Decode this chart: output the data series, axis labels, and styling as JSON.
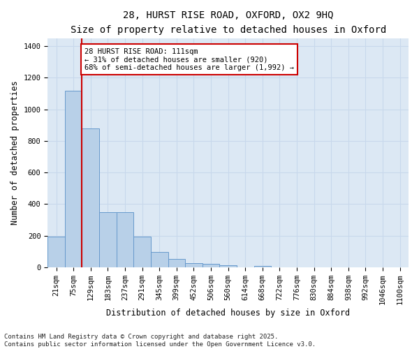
{
  "title_line1": "28, HURST RISE ROAD, OXFORD, OX2 9HQ",
  "title_line2": "Size of property relative to detached houses in Oxford",
  "xlabel": "Distribution of detached houses by size in Oxford",
  "ylabel": "Number of detached properties",
  "categories": [
    "21sqm",
    "75sqm",
    "129sqm",
    "183sqm",
    "237sqm",
    "291sqm",
    "345sqm",
    "399sqm",
    "452sqm",
    "506sqm",
    "560sqm",
    "614sqm",
    "668sqm",
    "722sqm",
    "776sqm",
    "830sqm",
    "884sqm",
    "938sqm",
    "992sqm",
    "1046sqm",
    "1100sqm"
  ],
  "values": [
    195,
    1120,
    880,
    350,
    350,
    195,
    95,
    55,
    25,
    20,
    15,
    0,
    10,
    0,
    0,
    0,
    0,
    0,
    0,
    0,
    0
  ],
  "bar_color": "#b8d0e8",
  "bar_edge_color": "#6699cc",
  "grid_color": "#c8d8ec",
  "background_color": "#dce8f4",
  "vline_color": "#cc0000",
  "annotation_text": "28 HURST RISE ROAD: 111sqm\n← 31% of detached houses are smaller (920)\n68% of semi-detached houses are larger (1,992) →",
  "annotation_box_color": "#cc0000",
  "ylim": [
    0,
    1450
  ],
  "yticks": [
    0,
    200,
    400,
    600,
    800,
    1000,
    1200,
    1400
  ],
  "footnote_line1": "Contains HM Land Registry data © Crown copyright and database right 2025.",
  "footnote_line2": "Contains public sector information licensed under the Open Government Licence v3.0.",
  "title_fontsize": 10,
  "subtitle_fontsize": 9.5,
  "axis_label_fontsize": 8.5,
  "tick_fontsize": 7.5,
  "annotation_fontsize": 7.5,
  "footnote_fontsize": 6.5
}
